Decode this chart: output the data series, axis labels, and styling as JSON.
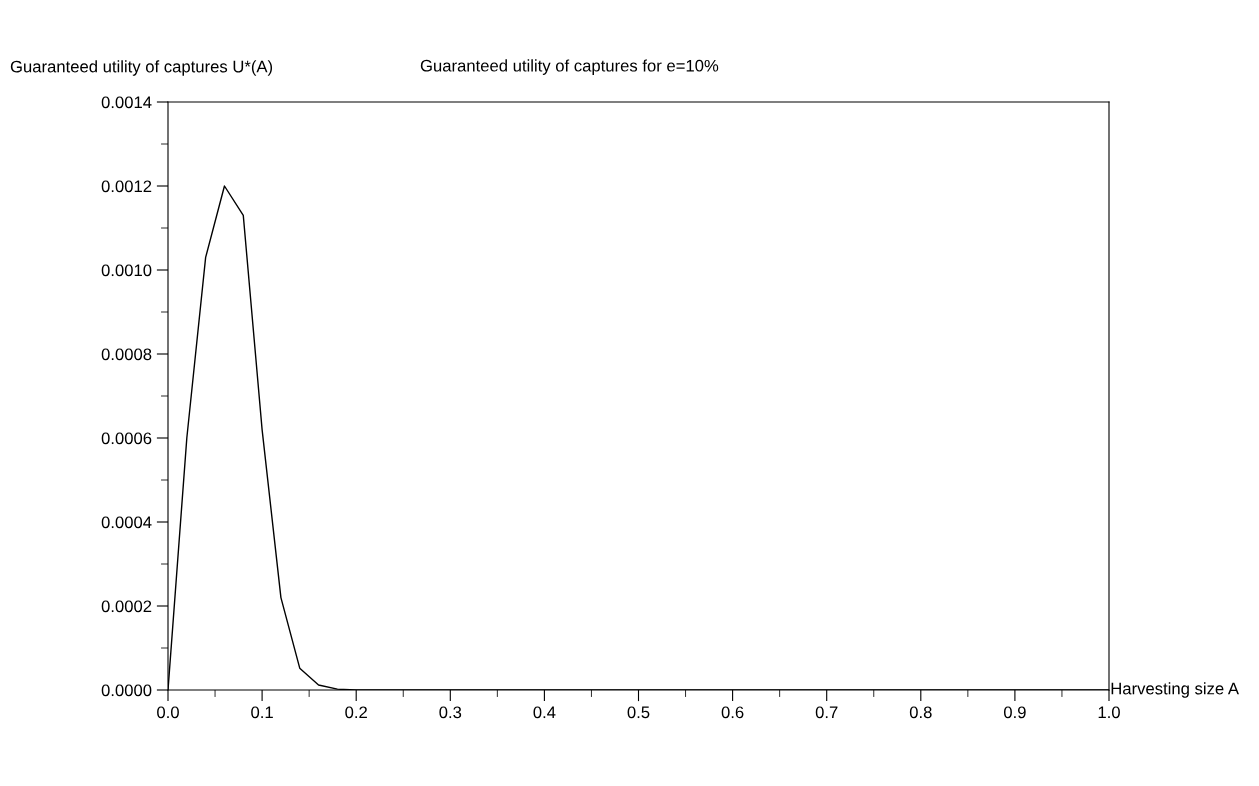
{
  "chart_data": {
    "type": "line",
    "title": "Guaranteed utility of captures for e=10%",
    "ylabel": "Guaranteed utility of captures U*(A)",
    "xlabel": "Harvesting size A",
    "x": [
      0,
      0.02,
      0.04,
      0.06,
      0.08,
      0.1,
      0.12,
      0.14,
      0.16,
      0.18,
      0.2,
      1.0
    ],
    "series": [
      {
        "color": "#000000",
        "values": [
          0,
          0.0006,
          0.00103,
          0.0012,
          0.00113,
          0.00062,
          0.00022,
          5.2e-05,
          1.2e-05,
          2e-06,
          0,
          0
        ]
      }
    ],
    "xlim": [
      0,
      1
    ],
    "ylim": [
      0,
      0.0014
    ],
    "xticks": [
      {
        "value": 0,
        "label": "0.0"
      },
      0.1,
      0.2,
      0.3,
      0.4,
      0.5,
      0.6,
      0.7,
      0.8,
      0.9,
      {
        "value": 1,
        "label": "1.0"
      }
    ],
    "yticks": [
      {
        "value": 0,
        "label": "0.0000"
      },
      {
        "value": 0.0002,
        "label": "0.0002"
      },
      {
        "value": 0.0004,
        "label": "0.0004"
      },
      {
        "value": 0.0006,
        "label": "0.0006"
      },
      {
        "value": 0.0008,
        "label": "0.0008"
      },
      {
        "value": 0.001,
        "label": "0.0010"
      },
      {
        "value": 0.0012,
        "label": "0.0012"
      },
      {
        "value": 0.0014,
        "label": "0.0014"
      }
    ],
    "grid": false,
    "legend": false,
    "marker": "none",
    "line_style": "solid"
  }
}
